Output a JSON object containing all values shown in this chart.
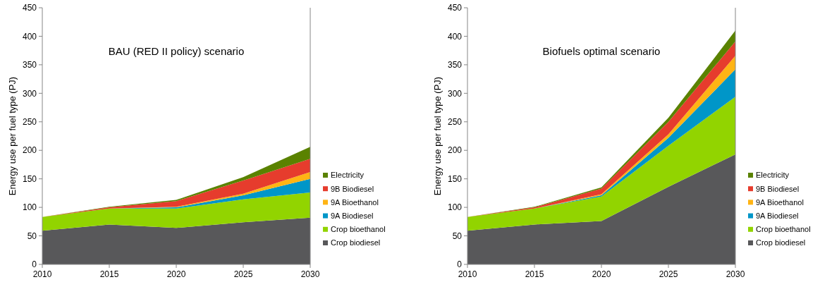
{
  "chart_data": [
    {
      "type": "area",
      "stacked": true,
      "title": "BAU (RED II policy) scenario",
      "ylabel": "Energy use per fuel type (PJ)",
      "x": [
        2010,
        2015,
        2020,
        2025,
        2030
      ],
      "xlim": [
        2010,
        2030
      ],
      "xticks": [
        2010,
        2015,
        2020,
        2025,
        2030
      ],
      "ylim": [
        0,
        450
      ],
      "yticks": [
        0,
        50,
        100,
        150,
        200,
        250,
        300,
        350,
        400,
        450
      ],
      "legend": "right",
      "series": [
        {
          "name": "Crop biodiesel",
          "color": "#58585a",
          "values": [
            59,
            70,
            64,
            74,
            82
          ]
        },
        {
          "name": "Crop bioethanol",
          "color": "#92d400",
          "values": [
            24,
            28,
            34,
            40,
            44
          ]
        },
        {
          "name": "9A Biodiesel",
          "color": "#0096c8",
          "values": [
            0,
            0,
            2,
            7,
            24
          ]
        },
        {
          "name": "9A Bioethanol",
          "color": "#ffb414",
          "values": [
            0,
            0,
            1,
            3,
            12
          ]
        },
        {
          "name": "9B Biodiesel",
          "color": "#e63c2d",
          "values": [
            0,
            2,
            10,
            23,
            23
          ]
        },
        {
          "name": "Electricity",
          "color": "#5a8200",
          "values": [
            0,
            1,
            2,
            6,
            21
          ]
        }
      ]
    },
    {
      "type": "area",
      "stacked": true,
      "title": "Biofuels optimal scenario",
      "ylabel": "Energy use per fuel type (PJ)",
      "x": [
        2010,
        2015,
        2020,
        2025,
        2030
      ],
      "xlim": [
        2010,
        2030
      ],
      "xticks": [
        2010,
        2015,
        2020,
        2025,
        2030
      ],
      "ylim": [
        0,
        450
      ],
      "yticks": [
        0,
        50,
        100,
        150,
        200,
        250,
        300,
        350,
        400,
        450
      ],
      "legend": "right",
      "series": [
        {
          "name": "Crop biodiesel",
          "color": "#58585a",
          "values": [
            59,
            70,
            76,
            136,
            193
          ]
        },
        {
          "name": "Crop bioethanol",
          "color": "#92d400",
          "values": [
            24,
            28,
            43,
            72,
            101
          ]
        },
        {
          "name": "9A Biodiesel",
          "color": "#0096c8",
          "values": [
            0,
            0,
            2,
            14,
            48
          ]
        },
        {
          "name": "9A Bioethanol",
          "color": "#ffb414",
          "values": [
            0,
            0,
            2,
            6,
            24
          ]
        },
        {
          "name": "9B Biodiesel",
          "color": "#e63c2d",
          "values": [
            0,
            2,
            10,
            22,
            25
          ]
        },
        {
          "name": "Electricity",
          "color": "#5a8200",
          "values": [
            0,
            1,
            2,
            7,
            19
          ]
        }
      ]
    }
  ]
}
